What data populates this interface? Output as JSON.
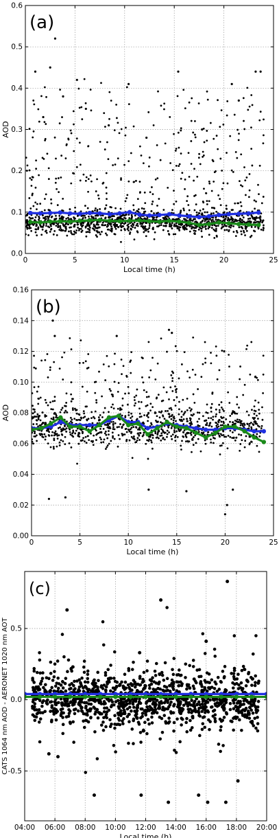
{
  "colors": {
    "mean": "#1f2fe0",
    "median": "#1a8a1a",
    "points": "#000000",
    "grid": "#9a9a9a"
  },
  "chart_data": [
    {
      "type": "scatter",
      "panel_label": "(a)",
      "xlabel": "Local time (h)",
      "ylabel": "AOD",
      "xlim": [
        0,
        25
      ],
      "ylim": [
        0,
        0.6
      ],
      "xticks": [
        0,
        5,
        10,
        15,
        20,
        25
      ],
      "yticks": [
        0.0,
        0.1,
        0.2,
        0.3,
        0.4,
        0.5,
        0.6
      ],
      "xtick_labels": [
        "0",
        "5",
        "10",
        "15",
        "20",
        "25"
      ],
      "ytick_labels": [
        "0.0",
        "0.1",
        "0.2",
        "0.3",
        "0.4",
        "0.5",
        "0.6"
      ],
      "grid": true,
      "scatter": {
        "x_range": [
          0,
          24
        ],
        "y_min": 0.02,
        "y_median": 0.075,
        "y_spread": 0.04,
        "outlier_max": 0.52
      },
      "outliers": [
        [
          1.0,
          0.44
        ],
        [
          2.5,
          0.45
        ],
        [
          3.0,
          0.52
        ],
        [
          3.8,
          0.38
        ],
        [
          5.2,
          0.42
        ],
        [
          10.4,
          0.41
        ],
        [
          15.4,
          0.44
        ],
        [
          20.8,
          0.41
        ],
        [
          21.5,
          0.37
        ],
        [
          23.2,
          0.44
        ],
        [
          23.7,
          0.44
        ],
        [
          1.8,
          0.33
        ],
        [
          6.1,
          0.35
        ],
        [
          8.4,
          0.31
        ],
        [
          12.2,
          0.28
        ],
        [
          17.8,
          0.3
        ]
      ],
      "series": [
        {
          "name": "mean",
          "x": [
            0.5,
            1.5,
            2.5,
            3.5,
            4.5,
            5.5,
            6.5,
            7.5,
            8.5,
            9.5,
            10.5,
            11.5,
            12.5,
            13.5,
            14.5,
            15.5,
            16.5,
            17.5,
            18.5,
            19.5,
            20.5,
            21.5,
            22.5,
            23.5
          ],
          "values": [
            0.098,
            0.097,
            0.098,
            0.099,
            0.097,
            0.096,
            0.098,
            0.097,
            0.095,
            0.097,
            0.1,
            0.094,
            0.092,
            0.093,
            0.095,
            0.092,
            0.09,
            0.088,
            0.09,
            0.093,
            0.095,
            0.096,
            0.097,
            0.099
          ]
        },
        {
          "name": "median",
          "x": [
            0.5,
            1.5,
            2.5,
            3.5,
            4.5,
            5.5,
            6.5,
            7.5,
            8.5,
            9.5,
            10.5,
            11.5,
            12.5,
            13.5,
            14.5,
            15.5,
            16.5,
            17.5,
            18.5,
            19.5,
            20.5,
            21.5,
            22.5,
            23.5
          ],
          "values": [
            0.076,
            0.075,
            0.077,
            0.078,
            0.077,
            0.079,
            0.08,
            0.081,
            0.079,
            0.078,
            0.079,
            0.08,
            0.078,
            0.077,
            0.079,
            0.077,
            0.074,
            0.069,
            0.071,
            0.075,
            0.073,
            0.071,
            0.07,
            0.069
          ]
        }
      ]
    },
    {
      "type": "scatter",
      "panel_label": "(b)",
      "xlabel": "Local time (h)",
      "ylabel": "AOD",
      "xlim": [
        0,
        25
      ],
      "ylim": [
        0,
        0.16
      ],
      "xticks": [
        0,
        5,
        10,
        15,
        20,
        25
      ],
      "yticks": [
        0.0,
        0.02,
        0.04,
        0.06,
        0.08,
        0.1,
        0.12,
        0.14,
        0.16
      ],
      "xtick_labels": [
        "0",
        "5",
        "10",
        "15",
        "20",
        "25"
      ],
      "ytick_labels": [
        "0.00",
        "0.02",
        "0.04",
        "0.06",
        "0.08",
        "0.10",
        "0.12",
        "0.14",
        "0.16"
      ],
      "grid": true,
      "scatter": {
        "x_range": [
          0,
          24
        ],
        "y_min": 0.035,
        "y_median": 0.07,
        "y_spread": 0.018,
        "outlier_max": 0.14
      },
      "outliers": [
        [
          2.2,
          0.14
        ],
        [
          2.4,
          0.13
        ],
        [
          8.8,
          0.13
        ],
        [
          14.2,
          0.134
        ],
        [
          14.5,
          0.132
        ],
        [
          19.9,
          0.12
        ],
        [
          20.0,
          0.014
        ],
        [
          20.2,
          0.02
        ],
        [
          1.8,
          0.024
        ],
        [
          3.5,
          0.025
        ],
        [
          20.8,
          0.03
        ],
        [
          12.1,
          0.03
        ],
        [
          16.0,
          0.029
        ]
      ],
      "series": [
        {
          "name": "mean",
          "x": [
            0,
            1,
            2,
            3,
            4,
            5,
            6,
            7,
            8,
            9,
            10,
            11,
            12,
            13,
            14,
            15,
            16,
            17,
            18,
            19,
            20,
            21,
            22,
            23,
            24
          ],
          "values": [
            0.07,
            0.07,
            0.071,
            0.074,
            0.072,
            0.072,
            0.072,
            0.072,
            0.075,
            0.078,
            0.074,
            0.074,
            0.07,
            0.071,
            0.073,
            0.072,
            0.071,
            0.07,
            0.069,
            0.069,
            0.07,
            0.07,
            0.069,
            0.068,
            0.068
          ]
        },
        {
          "name": "median",
          "x": [
            0,
            1,
            2,
            3,
            4,
            5,
            6,
            7,
            8,
            9,
            10,
            11,
            12,
            13,
            14,
            15,
            16,
            17,
            18,
            19,
            20,
            21,
            22,
            23,
            24
          ],
          "values": [
            0.069,
            0.07,
            0.073,
            0.077,
            0.071,
            0.071,
            0.068,
            0.072,
            0.077,
            0.078,
            0.072,
            0.073,
            0.066,
            0.07,
            0.074,
            0.071,
            0.07,
            0.067,
            0.064,
            0.067,
            0.071,
            0.071,
            0.068,
            0.064,
            0.061
          ]
        }
      ]
    },
    {
      "type": "scatter",
      "panel_label": "(c)",
      "xlabel": "Local time (h)",
      "ylabel": "CATS 1064 nm AOD - AERONET 1020 nm AOT",
      "xlim": [
        4,
        20
      ],
      "ylim": [
        -0.85,
        0.9
      ],
      "xticks": [
        4,
        6,
        8,
        10,
        12,
        14,
        16,
        18,
        20
      ],
      "yticks": [
        -0.5,
        0.0,
        0.5
      ],
      "xtick_labels": [
        "04:00",
        "06:00",
        "08:00",
        "10:00",
        "12:00",
        "14:00",
        "16:00",
        "18:00",
        "20:00"
      ],
      "ytick_labels": [
        "-0.5",
        "0.0",
        "0.5"
      ],
      "grid": true,
      "scatter": {
        "x_range": [
          4.5,
          19.5
        ],
        "y_min": -0.45,
        "y_median": 0.0,
        "y_spread": 0.13,
        "outlier_max": 0.83
      },
      "outliers": [
        [
          6.8,
          0.63
        ],
        [
          13.0,
          0.7
        ],
        [
          17.4,
          0.83
        ],
        [
          8.6,
          -0.67
        ],
        [
          11.7,
          -0.67
        ],
        [
          13.5,
          -0.72
        ],
        [
          15.5,
          -0.67
        ],
        [
          16.1,
          -0.72
        ],
        [
          17.3,
          -0.72
        ],
        [
          18.1,
          -0.57
        ],
        [
          5.6,
          -0.38
        ],
        [
          6.2,
          -0.4
        ],
        [
          16.0,
          0.41
        ],
        [
          11.6,
          0.33
        ]
      ],
      "series": [
        {
          "name": "mean",
          "x": [
            4,
            5,
            6,
            7,
            8,
            9,
            10,
            11,
            12,
            13,
            14,
            15,
            16,
            17,
            18,
            19,
            20
          ],
          "values": [
            0.04,
            0.04,
            0.04,
            0.04,
            0.04,
            0.04,
            0.04,
            0.04,
            0.04,
            0.04,
            0.04,
            0.04,
            0.04,
            0.04,
            0.04,
            0.04,
            0.04
          ]
        },
        {
          "name": "median",
          "x": [
            4,
            5,
            6,
            7,
            8,
            9,
            10,
            11,
            12,
            13,
            14,
            15,
            16,
            17,
            18,
            19,
            20
          ],
          "values": [
            0.02,
            0.02,
            0.02,
            0.02,
            0.02,
            0.02,
            0.02,
            0.02,
            0.02,
            0.02,
            0.02,
            0.02,
            0.02,
            0.02,
            0.02,
            0.02,
            0.02
          ]
        }
      ]
    }
  ]
}
